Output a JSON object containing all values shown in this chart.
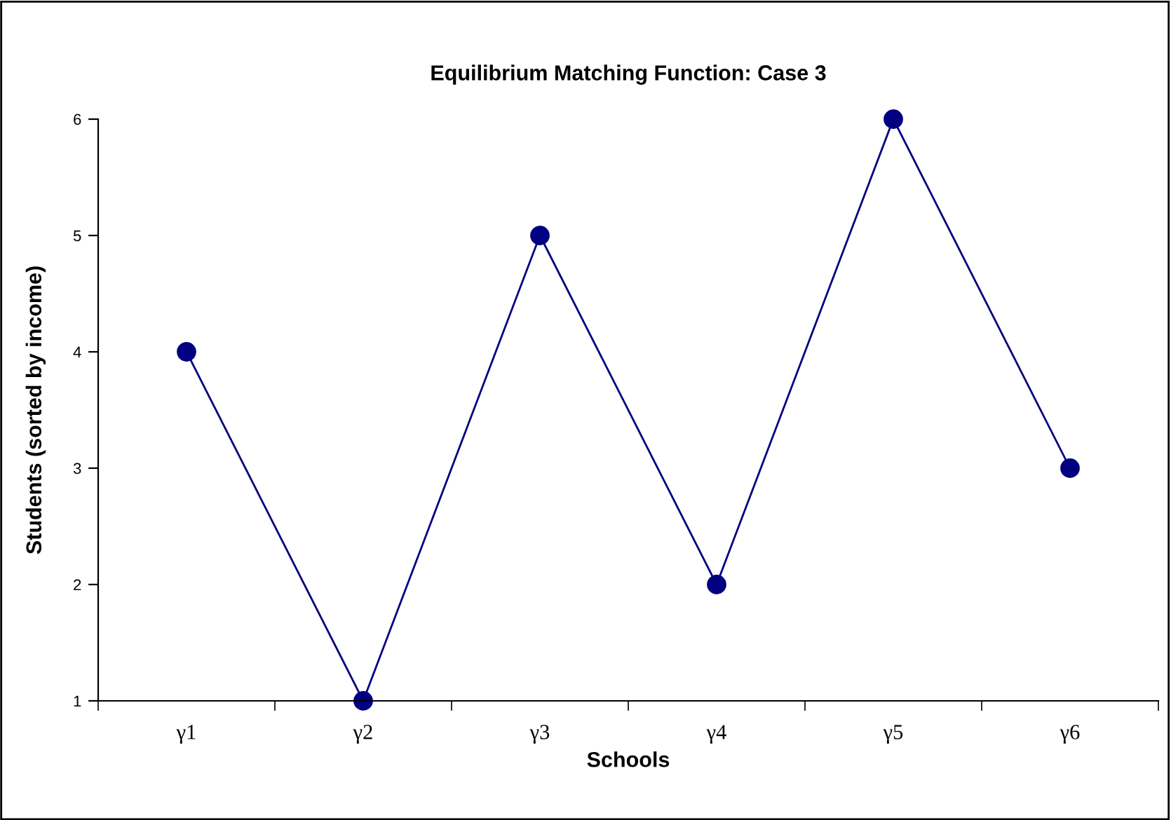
{
  "chart_data": {
    "type": "line",
    "title": "Equilibrium Matching Function: Case 3",
    "xlabel": "Schools",
    "ylabel": "Students (sorted by income)",
    "categories": [
      "γ1",
      "γ2",
      "γ3",
      "γ4",
      "γ5",
      "γ6"
    ],
    "series": [
      {
        "color": "#000080",
        "values": [
          4,
          1,
          5,
          2,
          6,
          3
        ]
      }
    ],
    "ylim": [
      1,
      6
    ],
    "yticks": [
      1,
      2,
      3,
      4,
      5,
      6
    ],
    "grid": false,
    "legend": false,
    "marker": "circle",
    "line_style": "solid"
  }
}
